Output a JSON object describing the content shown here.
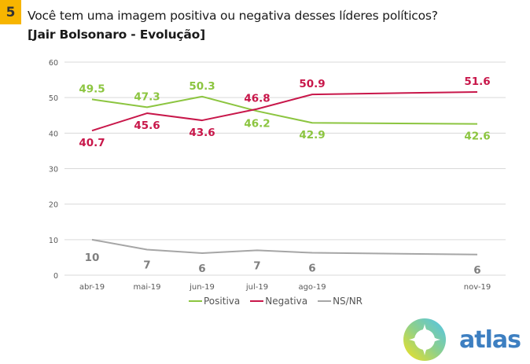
{
  "badge": "5",
  "title": "Você tem uma imagem positiva ou negativa desses líderes políticos?",
  "subtitle": "[Jair Bolsonaro - Evolução]",
  "logo": {
    "text": "atlas",
    "icon": "compass-star-icon"
  },
  "chart_data": {
    "type": "line",
    "title": "Você tem uma imagem positiva ou negativa desses líderes políticos? [Jair Bolsonaro - Evolução]",
    "xlabel": "",
    "ylabel": "",
    "ylim": [
      0,
      60
    ],
    "yticks": [
      0,
      10,
      20,
      30,
      40,
      50,
      60
    ],
    "grid": true,
    "legend_position": "bottom",
    "categories": [
      "abr-19",
      "mai-19",
      "jun-19",
      "jul-19",
      "ago-19",
      "nov-19"
    ],
    "x_slots": [
      0,
      1,
      2,
      3,
      4,
      7
    ],
    "series": [
      {
        "name": "Positiva",
        "color": "#8cc540",
        "values": [
          49.5,
          47.3,
          50.3,
          46.2,
          42.9,
          42.6
        ],
        "labels": [
          "49.5",
          "47.3",
          "50.3",
          "46.2",
          "42.9",
          "42.6"
        ],
        "label_pos": [
          "above",
          "above",
          "above",
          "below",
          "below",
          "below"
        ]
      },
      {
        "name": "Negativa",
        "color": "#c8174a",
        "values": [
          40.7,
          45.6,
          43.6,
          46.8,
          50.9,
          51.6
        ],
        "labels": [
          "40.7",
          "45.6",
          "43.6",
          "46.8",
          "50.9",
          "51.6"
        ],
        "label_pos": [
          "below",
          "below",
          "below",
          "above",
          "above",
          "above"
        ]
      },
      {
        "name": "NS/NR",
        "color": "#a6a6a6",
        "values": [
          10,
          7.2,
          6.2,
          7,
          6.3,
          5.8
        ],
        "labels": [
          "10",
          "7",
          "6",
          "7",
          "6",
          "6"
        ],
        "label_pos": [
          "below",
          "below",
          "below",
          "below",
          "below",
          "below"
        ]
      }
    ]
  }
}
